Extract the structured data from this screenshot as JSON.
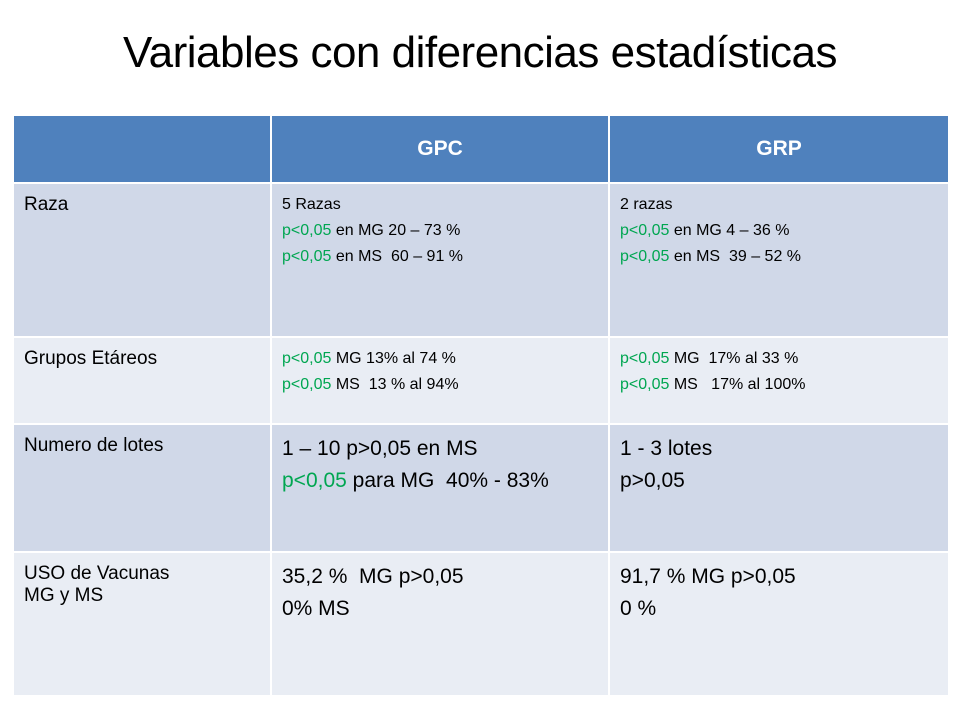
{
  "title": "Variables con diferencias estadísticas",
  "table": {
    "header": [
      "GPC",
      "GRP"
    ],
    "green": "#00a651",
    "rows": [
      {
        "label": [
          "Raza"
        ],
        "cells": [
          [
            [
              "5 Razas"
            ],
            [
              {
                "text": "p<0,05",
                "green": true
              },
              " en MG 20 – 73 %"
            ],
            [
              {
                "text": "p<0,05",
                "green": true
              },
              " en MS  60 – 91 %"
            ]
          ],
          [
            [
              "2 razas"
            ],
            [
              {
                "text": "p<0,05",
                "green": true
              },
              " en MG 4 – 36 %"
            ],
            [
              {
                "text": "p<0,05",
                "green": true
              },
              " en MS  39 – 52 %"
            ]
          ]
        ]
      },
      {
        "label": [
          "Grupos Etáreos"
        ],
        "cells": [
          [
            [
              {
                "text": "p<0,05",
                "green": true
              },
              " MG 13% al 74 %"
            ],
            [
              {
                "text": "p<0,05",
                "green": true
              },
              " MS  13 % al 94%"
            ]
          ],
          [
            [
              {
                "text": "p<0,05",
                "green": true
              },
              " MG  17% al 33 %"
            ],
            [
              {
                "text": "p<0,05",
                "green": true
              },
              " MS   17% al 100%"
            ]
          ]
        ]
      },
      {
        "label": [
          "Numero de lotes"
        ],
        "cells": [
          [
            [
              "1 – 10 p>0,05 en MS"
            ],
            [
              {
                "text": "p<0,05",
                "green": true
              },
              " para MG  40% - 83%"
            ]
          ],
          [
            [
              "1 - 3 lotes"
            ],
            [
              "p>0,05"
            ]
          ]
        ]
      },
      {
        "label": [
          "USO de Vacunas",
          "MG y MS"
        ],
        "cells": [
          [
            [
              "35,2 %  MG p>0,05"
            ],
            [
              "0% MS"
            ]
          ],
          [
            [
              "91,7 % MG p>0,05"
            ],
            [
              "0 %"
            ]
          ]
        ]
      }
    ]
  }
}
